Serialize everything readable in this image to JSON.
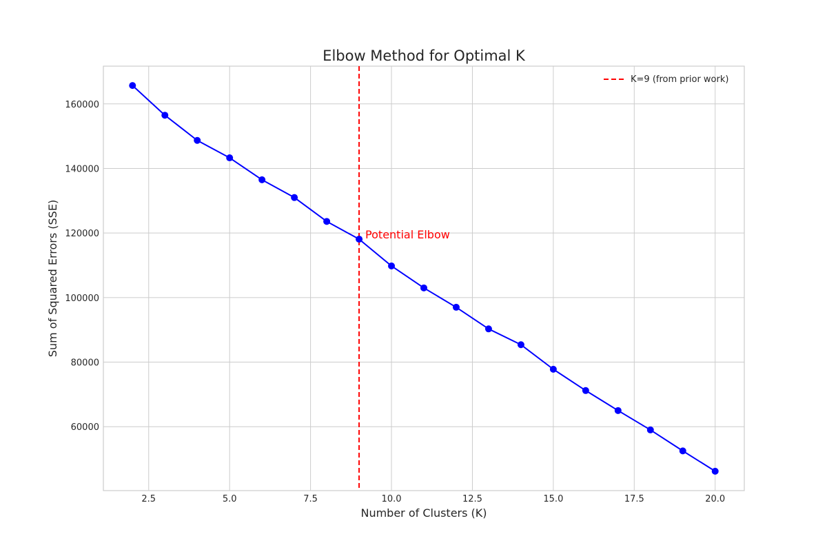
{
  "chart_data": {
    "type": "line",
    "title": "Elbow Method for Optimal K",
    "xlabel": "Number of Clusters (K)",
    "ylabel": "Sum of Squared Errors (SSE)",
    "xlim": [
      1.1,
      20.9
    ],
    "ylim": [
      40200,
      171700
    ],
    "xticks": [
      2.5,
      5.0,
      7.5,
      10.0,
      12.5,
      15.0,
      17.5,
      20.0
    ],
    "xtick_labels": [
      "2.5",
      "5.0",
      "7.5",
      "10.0",
      "12.5",
      "15.0",
      "17.5",
      "20.0"
    ],
    "yticks": [
      60000,
      80000,
      100000,
      120000,
      140000,
      160000
    ],
    "ytick_labels": [
      "60000",
      "80000",
      "100000",
      "120000",
      "140000",
      "160000"
    ],
    "grid": true,
    "legend_position": "top-right",
    "series": [
      {
        "x": [
          2,
          3,
          4,
          5,
          6,
          7,
          8,
          9,
          10,
          11,
          12,
          13,
          14,
          15,
          16,
          17,
          18,
          19,
          20
        ],
        "y": [
          165700,
          156500,
          148700,
          143300,
          136500,
          131000,
          123600,
          118100,
          109800,
          103000,
          97000,
          90300,
          85400,
          77800,
          71200,
          65000,
          59000,
          52500,
          46200
        ],
        "color": "#0000ff"
      }
    ],
    "reference_line": {
      "orientation": "vertical",
      "x": 9,
      "style": "dashed",
      "color": "#ff0000",
      "label": "K=9 (from prior work)"
    },
    "annotations": [
      {
        "text": "Potential Elbow",
        "x": 9,
        "y": 118100,
        "color": "#ff0000"
      }
    ]
  }
}
